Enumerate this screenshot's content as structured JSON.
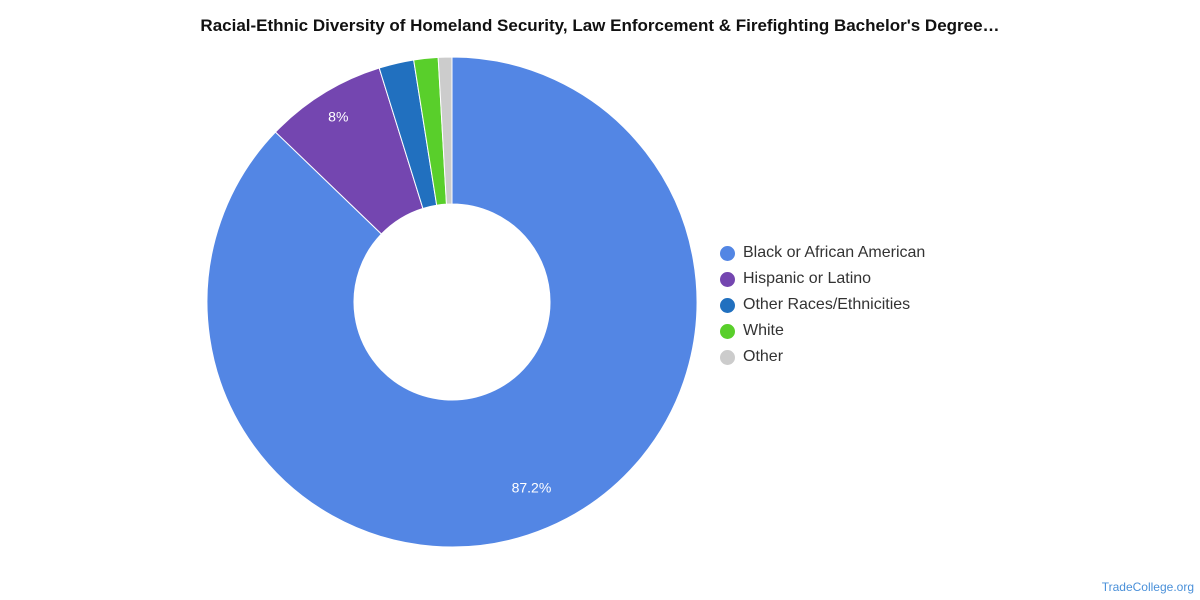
{
  "chart_data": {
    "type": "pie",
    "title": "Racial-Ethnic Diversity of Homeland Security, Law Enforcement & Firefighting Bachelor's Degree…",
    "donut": true,
    "legend_position": "right",
    "slices": [
      {
        "label": "Black or African American",
        "value": 87.2,
        "color": "#5386e4",
        "data_label": "87.2%"
      },
      {
        "label": "Hispanic or Latino",
        "value": 8.0,
        "color": "#7446b0",
        "data_label": "8%"
      },
      {
        "label": "Other Races/Ethnicities",
        "value": 2.3,
        "color": "#2170bf",
        "data_label": ""
      },
      {
        "label": "White",
        "value": 1.6,
        "color": "#59cf2b",
        "data_label": ""
      },
      {
        "label": "Other",
        "value": 0.9,
        "color": "#cccccc",
        "data_label": ""
      }
    ]
  },
  "source": "TradeCollege.org"
}
